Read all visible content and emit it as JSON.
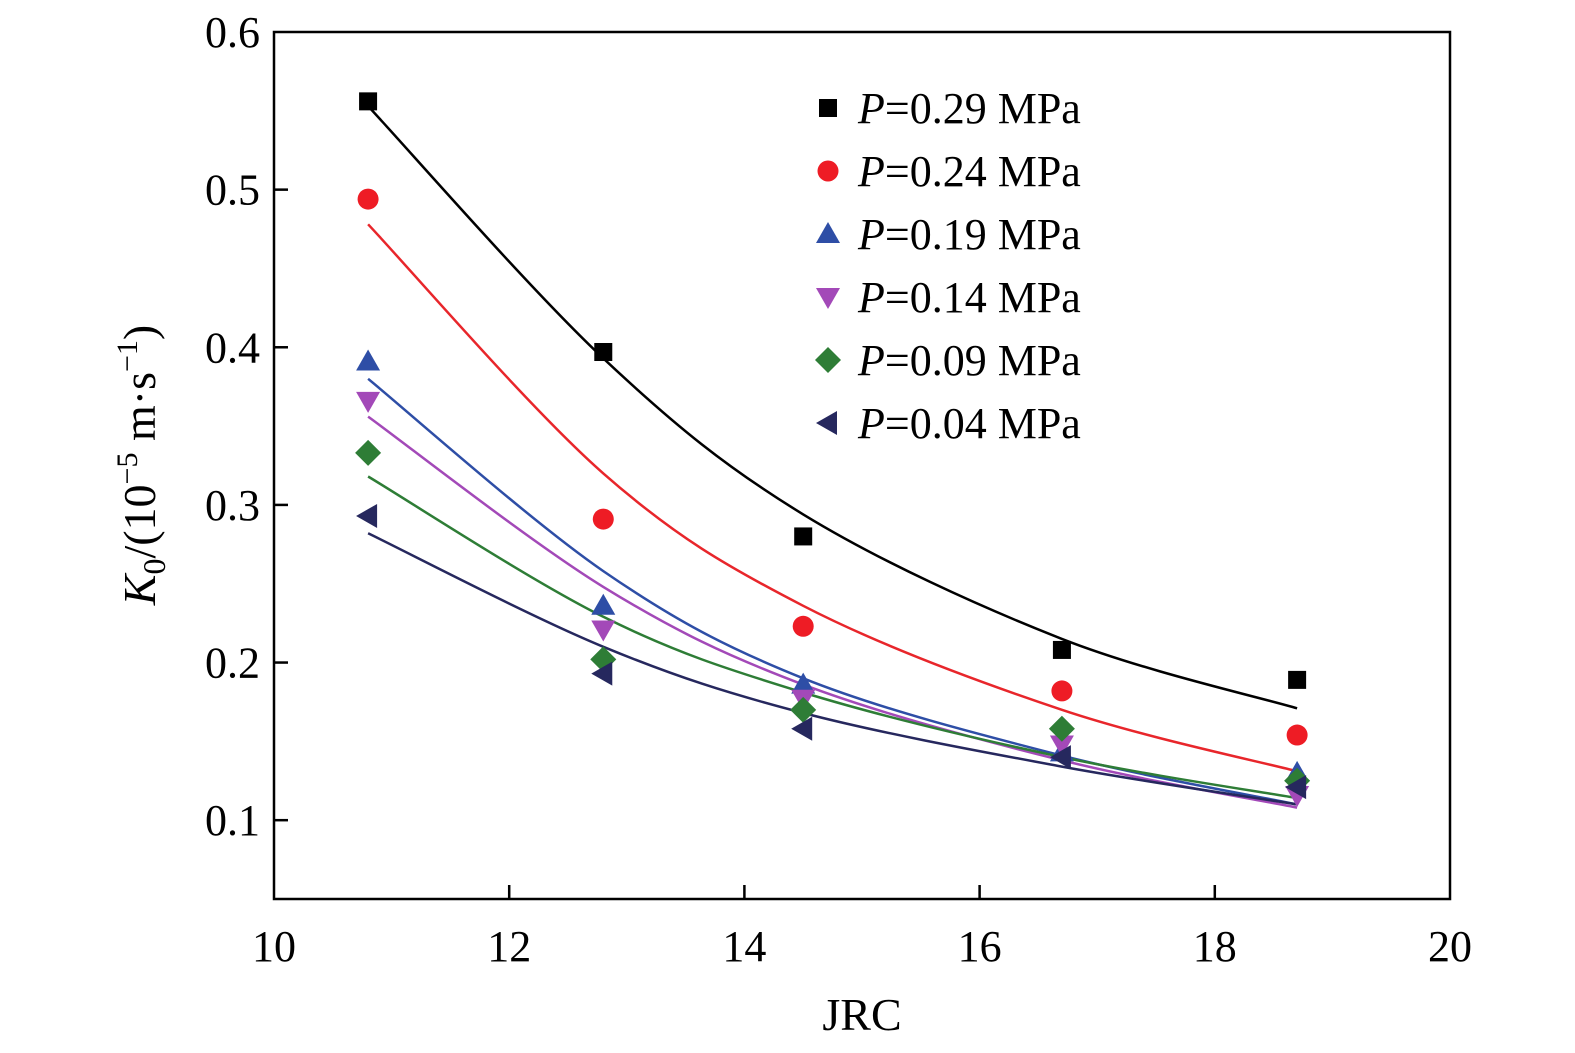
{
  "chart_data": {
    "type": "scatter",
    "xlabel": "JRC",
    "ylabel": {
      "base": "K",
      "subscript": "0",
      "unit_prefix": "/(10",
      "exponent": "−5",
      "unit_mid": " m·s",
      "unit_exponent": "−1",
      "unit_suffix": ")"
    },
    "xlim": [
      10,
      20
    ],
    "ylim": [
      0.05,
      0.6
    ],
    "x_ticks": [
      10,
      12,
      14,
      16,
      18,
      20
    ],
    "y_ticks": [
      0.1,
      0.2,
      0.3,
      0.4,
      0.5,
      0.6
    ],
    "x_tick_labels": [
      "10",
      "12",
      "14",
      "16",
      "18",
      "20"
    ],
    "y_tick_labels": [
      "0.1",
      "0.2",
      "0.3",
      "0.4",
      "0.5",
      "0.6"
    ],
    "grid": false,
    "legend_position": "top-right",
    "x": [
      10.8,
      12.8,
      14.5,
      16.7,
      18.7
    ],
    "series": [
      {
        "name": "P=0.29 MPa",
        "legend_var": "P",
        "legend_value": "=0.29 MPa",
        "marker": "square",
        "color": "#000000",
        "line_color": "#000000",
        "values": [
          0.556,
          0.397,
          0.28,
          0.208,
          0.189
        ],
        "fit": [
          0.553,
          0.393,
          0.294,
          0.215,
          0.171
        ]
      },
      {
        "name": "P=0.24 MPa",
        "legend_var": "P",
        "legend_value": "=0.24 MPa",
        "marker": "circle",
        "color": "#ee1c25",
        "line_color": "#e8262b",
        "values": [
          0.494,
          0.291,
          0.223,
          0.182,
          0.154
        ],
        "fit": [
          0.478,
          0.32,
          0.236,
          0.17,
          0.131
        ]
      },
      {
        "name": "P=0.19 MPa",
        "legend_var": "P",
        "legend_value": "=0.19 MPa",
        "marker": "triangle-up",
        "color": "#2e4ea6",
        "line_color": "#2e4ea6",
        "values": [
          0.391,
          0.236,
          0.186,
          0.143,
          0.13
        ],
        "fit": [
          0.38,
          0.258,
          0.19,
          0.141,
          0.11
        ]
      },
      {
        "name": "P=0.14 MPa",
        "legend_var": "P",
        "legend_value": "=0.14 MPa",
        "marker": "triangle-down",
        "color": "#a349b8",
        "line_color": "#a349b8",
        "values": [
          0.366,
          0.221,
          0.177,
          0.148,
          0.116
        ],
        "fit": [
          0.356,
          0.248,
          0.186,
          0.138,
          0.108
        ]
      },
      {
        "name": "P=0.09 MPa",
        "legend_var": "P",
        "legend_value": "=0.09 MPa",
        "marker": "diamond",
        "color": "#2e7d36",
        "line_color": "#2e7d36",
        "values": [
          0.333,
          0.202,
          0.17,
          0.158,
          0.125
        ],
        "fit": [
          0.318,
          0.229,
          0.181,
          0.14,
          0.114
        ]
      },
      {
        "name": "P=0.04 MPa",
        "legend_var": "P",
        "legend_value": "=0.04 MPa",
        "marker": "triangle-left",
        "color": "#26285e",
        "line_color": "#26285e",
        "values": [
          0.293,
          0.193,
          0.158,
          0.14,
          0.121
        ],
        "fit": [
          0.282,
          0.21,
          0.168,
          0.134,
          0.11
        ]
      }
    ]
  }
}
